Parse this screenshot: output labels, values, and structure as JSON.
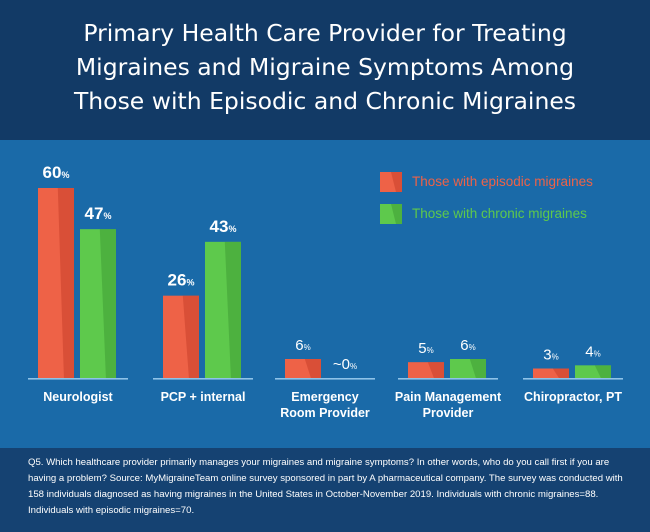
{
  "title_lines": [
    "Primary Health Care Provider for Treating",
    "Migraines and Migraine Symptoms Among",
    "Those with Episodic and Chronic Migraines"
  ],
  "colors": {
    "episodic": "#ee6247",
    "episodic_dark": "#c9402a",
    "chronic": "#5ec94c",
    "chronic_dark": "#3f9c34",
    "header_bg": "#123a66",
    "chart_bg": "#1a6aa8",
    "footer_bg": "#154272"
  },
  "chart_data": {
    "type": "bar",
    "title": "Primary Health Care Provider for Treating Migraines and Migraine Symptoms Among Those with Episodic and Chronic Migraines",
    "categories": [
      [
        "Neurologist"
      ],
      [
        "PCP + internal"
      ],
      [
        "Emergency",
        "Room Provider"
      ],
      [
        "Pain Management",
        "Provider"
      ],
      [
        "Chiropractor, PT"
      ]
    ],
    "series": [
      {
        "name": "Those with episodic migraines",
        "values": [
          60,
          26,
          6,
          5,
          3
        ],
        "labels": [
          "60",
          "26",
          "6",
          "5",
          "3"
        ]
      },
      {
        "name": "Those with chronic migraines",
        "values": [
          47,
          43,
          0,
          6,
          4
        ],
        "labels": [
          "47",
          "43",
          "~0",
          "6",
          "4"
        ]
      }
    ],
    "unit": "%",
    "ylim": [
      0,
      60
    ],
    "legend_position": "top-right",
    "grid": false
  },
  "footnote": "Q5. Which healthcare provider primarily manages your migraines and migraine symptoms? In other words, who do you call first if you are having a problem? Source: MyMigraineTeam online survey sponsored in part by A pharmaceutical company. The survey was conducted with 158 individuals diagnosed as having migraines in the United States in October-November 2019. Individuals with chronic migraines=88. Individuals with episodic migraines=70."
}
